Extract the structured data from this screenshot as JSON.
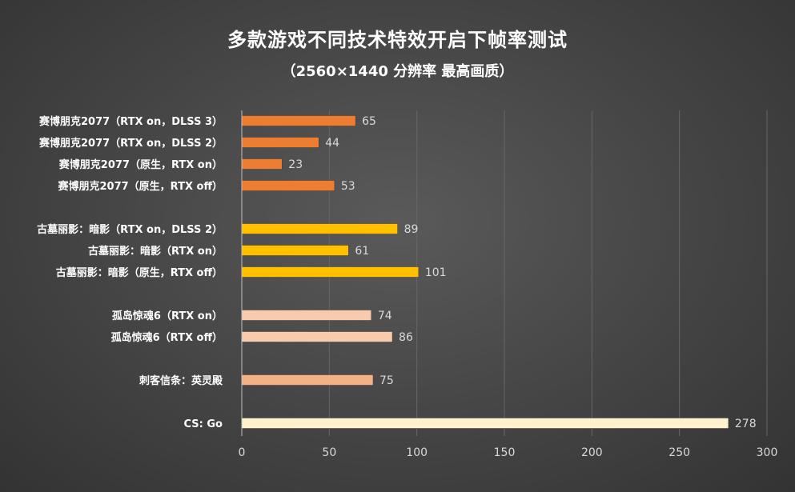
{
  "chart_data": {
    "type": "bar",
    "orientation": "horizontal",
    "title": "多款游戏不同技术特效开启下帧率测试",
    "subtitle": "（2560×1440 分辨率 最高画质）",
    "xlim": [
      0,
      300
    ],
    "x_ticks": [
      0,
      50,
      100,
      150,
      200,
      250,
      300
    ],
    "grid": "vertical",
    "legend": "none",
    "groups": [
      {
        "color": "#ed7d31",
        "bars": [
          {
            "label": "赛博朋克2077（RTX on，DLSS 3）",
            "value": 65
          },
          {
            "label": "赛博朋克2077（RTX on，DLSS 2）",
            "value": 44
          },
          {
            "label": "赛博朋克2077（原生，RTX on）",
            "value": 23
          },
          {
            "label": "赛博朋克2077（原生，RTX off）",
            "value": 53
          }
        ]
      },
      {
        "color": "#ffc000",
        "bars": [
          {
            "label": "古墓丽影：暗影（RTX on，DLSS 2）",
            "value": 89
          },
          {
            "label": "古墓丽影：暗影（RTX on）",
            "value": 61
          },
          {
            "label": "古墓丽影：暗影（原生，RTX off）",
            "value": 101
          }
        ]
      },
      {
        "color": "#f8cbad",
        "bars": [
          {
            "label": "孤岛惊魂6（RTX on）",
            "value": 74
          },
          {
            "label": "孤岛惊魂6（RTX off）",
            "value": 86
          }
        ]
      },
      {
        "color": "#f4b183",
        "bars": [
          {
            "label": "刺客信条：英灵殿",
            "value": 75
          }
        ]
      },
      {
        "color": "#fff2cc",
        "bars": [
          {
            "label": "CS: Go",
            "value": 278
          }
        ]
      }
    ]
  }
}
